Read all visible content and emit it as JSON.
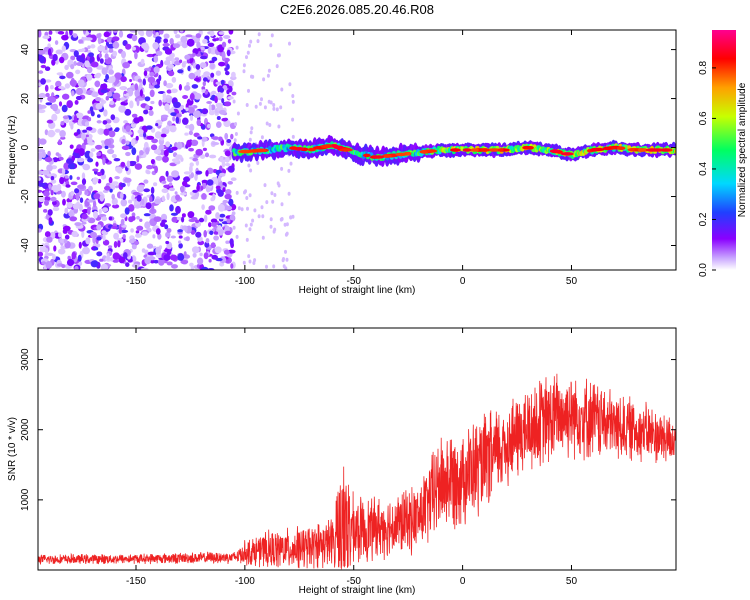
{
  "figure": {
    "title": "C2E6.2026.085.20.46.R08"
  },
  "chart_data": [
    {
      "type": "heatmap",
      "xlabel": "Height of straight line (km)",
      "ylabel": "Frequency (Hz)",
      "xlim": [
        -195,
        98
      ],
      "ylim": [
        -50,
        48
      ],
      "xticks": [
        -150,
        -100,
        -50,
        0,
        50
      ],
      "yticks": [
        -40,
        -20,
        0,
        20,
        40
      ],
      "noise_region": {
        "x_from": -195,
        "x_to": -105,
        "amplitude": "low (0.05-0.2)"
      },
      "ridge": {
        "description_points": [
          {
            "x": -105,
            "y": -2
          },
          {
            "x": -90,
            "y": -1
          },
          {
            "x": -80,
            "y": 0
          },
          {
            "x": -70,
            "y": -1
          },
          {
            "x": -60,
            "y": 1
          },
          {
            "x": -50,
            "y": -2
          },
          {
            "x": -40,
            "y": -4
          },
          {
            "x": -30,
            "y": -3
          },
          {
            "x": -20,
            "y": -2
          },
          {
            "x": -10,
            "y": -1
          },
          {
            "x": 0,
            "y": -1
          },
          {
            "x": 10,
            "y": -1
          },
          {
            "x": 20,
            "y": -1
          },
          {
            "x": 30,
            "y": 0
          },
          {
            "x": 40,
            "y": -1
          },
          {
            "x": 50,
            "y": -3
          },
          {
            "x": 60,
            "y": -1
          },
          {
            "x": 70,
            "y": 0
          },
          {
            "x": 80,
            "y": -1
          },
          {
            "x": 98,
            "y": -1
          }
        ]
      },
      "colorbar": {
        "label": "Normalized spectral amplitude",
        "range": [
          0.0,
          0.95
        ],
        "ticks": [
          "0.0",
          "0.2",
          "0.4",
          "0.6",
          "0.8"
        ],
        "colormap": [
          "#ffffff",
          "#8a00ff",
          "#2040ff",
          "#00d8ff",
          "#00ff60",
          "#c8ff00",
          "#ffa000",
          "#ff0000",
          "#ff0090"
        ]
      }
    },
    {
      "type": "line",
      "xlabel": "Height of straight line (km)",
      "ylabel": "SNR (10 * v/v)",
      "xlim": [
        -195,
        98
      ],
      "ylim": [
        0,
        3450
      ],
      "xticks": [
        -150,
        -100,
        -50,
        0,
        50
      ],
      "yticks": [
        1000,
        2000,
        3000
      ],
      "series": [
        {
          "color": "#ee2222",
          "envelope": {
            "x": [
              -195,
              -150,
              -105,
              -100,
              -90,
              -80,
              -70,
              -60,
              -57,
              -55,
              -50,
              -40,
              -30,
              -20,
              -15,
              -10,
              0,
              10,
              20,
              30,
              40,
              50,
              60,
              70,
              80,
              90,
              98
            ],
            "mean": [
              150,
              160,
              180,
              250,
              280,
              300,
              320,
              400,
              500,
              650,
              550,
              600,
              650,
              750,
              1000,
              1250,
              1350,
              1500,
              1800,
              2000,
              2150,
              2250,
              2150,
              2050,
              2000,
              1900,
              1850
            ],
            "amp": [
              80,
              80,
              100,
              200,
              300,
              330,
              350,
              400,
              900,
              1300,
              550,
              500,
              500,
              550,
              700,
              800,
              800,
              800,
              700,
              700,
              750,
              700,
              650,
              550,
              500,
              450,
              400
            ]
          }
        }
      ]
    }
  ]
}
